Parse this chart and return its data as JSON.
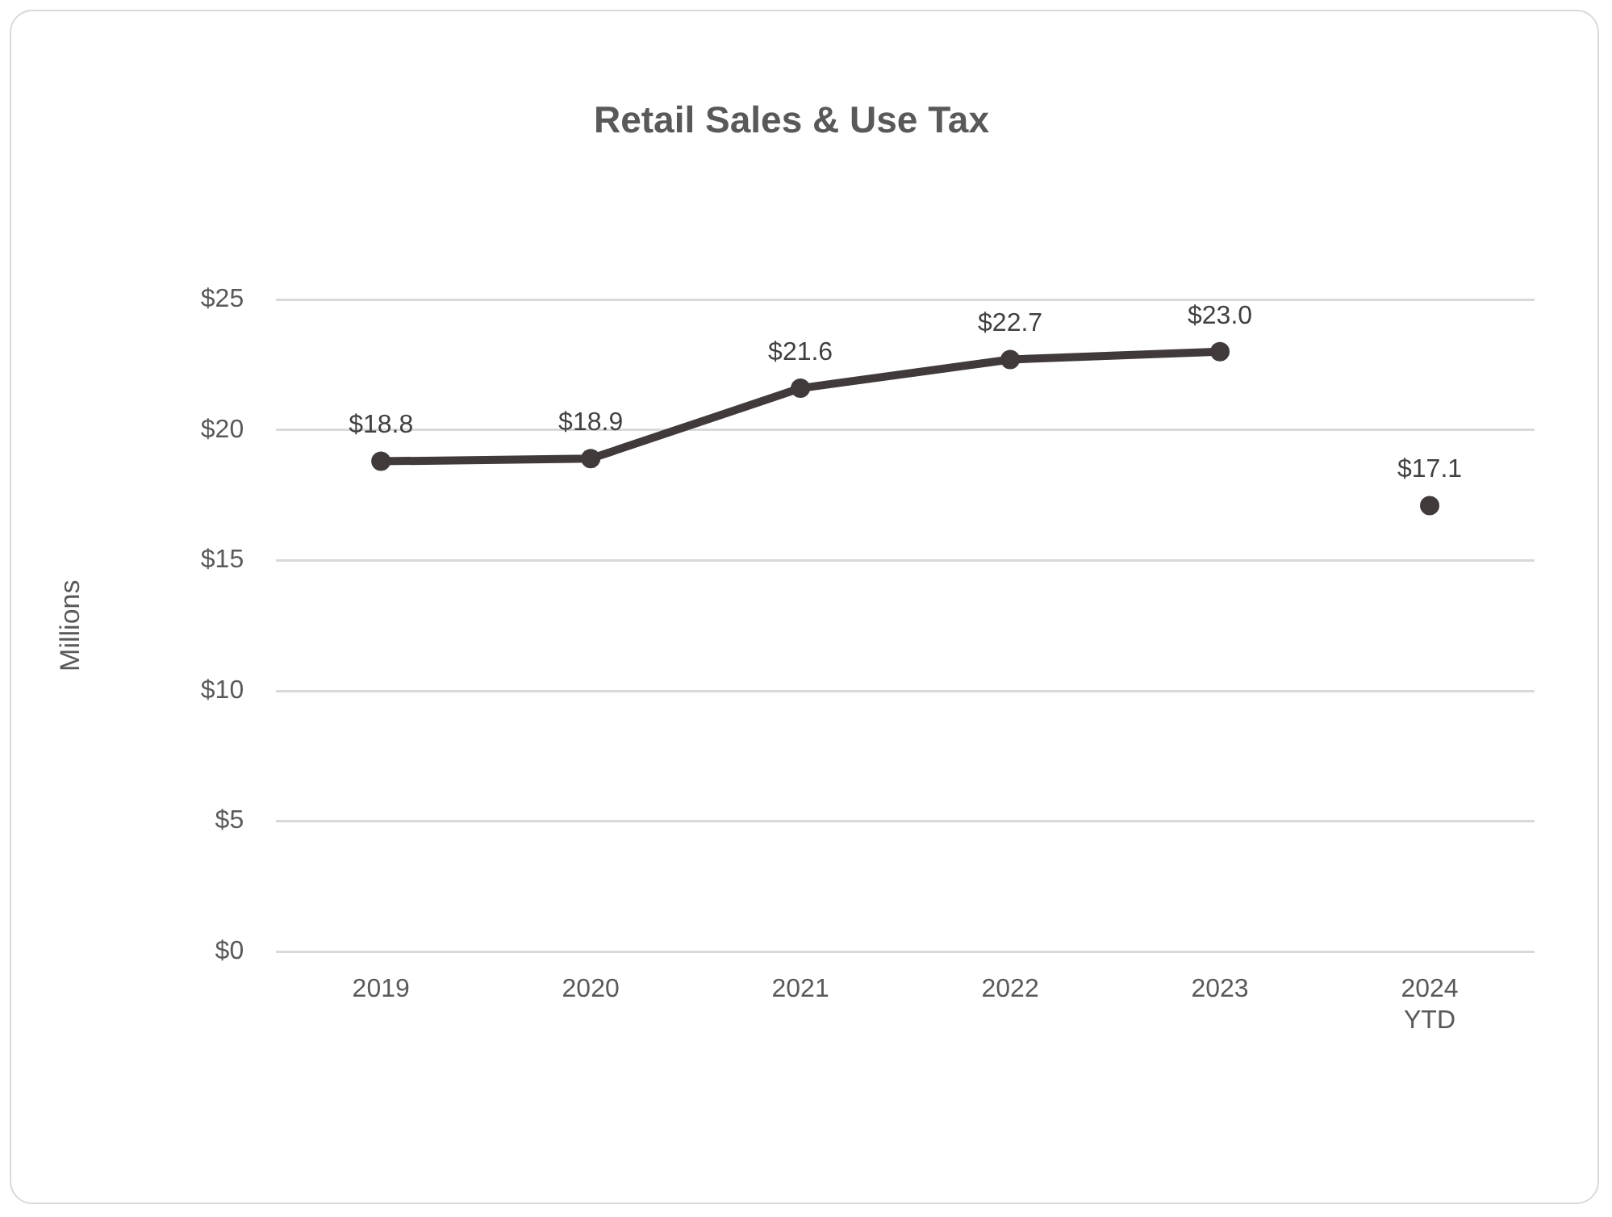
{
  "chart_data": {
    "type": "line",
    "title": "Retail Sales & Use Tax",
    "ylabel": "Millions",
    "categories": [
      "2019",
      "2020",
      "2021",
      "2022",
      "2023",
      "2024 YTD"
    ],
    "series": [
      {
        "color": "#403a3b",
        "values": [
          18.8,
          18.9,
          21.6,
          22.7,
          23.0,
          null
        ],
        "value_labels": [
          "$18.8",
          "$18.9",
          "$21.6",
          "$22.7",
          "$23.0",
          null
        ]
      },
      {
        "type": "scatter",
        "color": "#403a3b",
        "values": [
          null,
          null,
          null,
          null,
          null,
          17.1
        ],
        "value_labels": [
          null,
          null,
          null,
          null,
          null,
          "$17.1"
        ]
      }
    ],
    "ylim": [
      0,
      25
    ],
    "yticks": [
      {
        "value": 0,
        "label": "$0"
      },
      {
        "value": 5,
        "label": "$5"
      },
      {
        "value": 10,
        "label": "$10"
      },
      {
        "value": 15,
        "label": "$15"
      },
      {
        "value": 20,
        "label": "$20"
      },
      {
        "value": 25,
        "label": "$25"
      }
    ],
    "grid": "y",
    "legend": false,
    "marker": "circle",
    "line_style": "solid"
  }
}
